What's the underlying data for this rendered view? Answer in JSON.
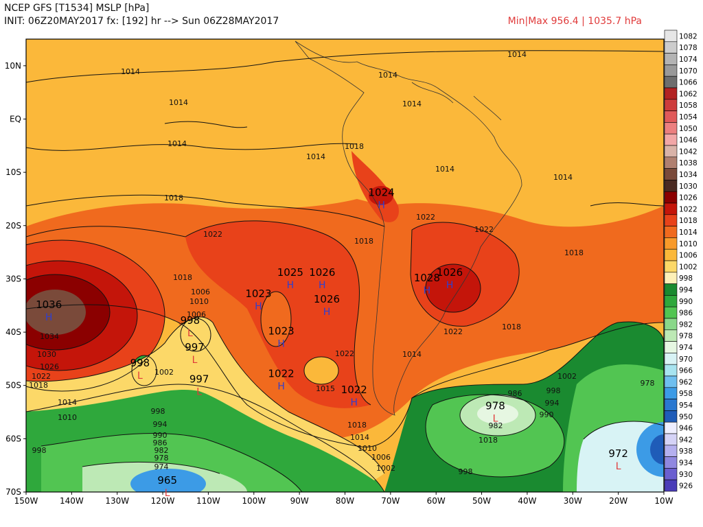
{
  "header": {
    "line1": "NCEP GFS [T1534] MSLP [hPa]",
    "line2": "INIT: 06Z20MAY2017 fx: [192] hr --> Sun 06Z28MAY2017",
    "minmax": "Min|Max 956.4 | 1035.7 hPa"
  },
  "axes": {
    "lon_ticks": [
      "150W",
      "140W",
      "130W",
      "120W",
      "110W",
      "100W",
      "90W",
      "80W",
      "70W",
      "60W",
      "50W",
      "40W",
      "30W",
      "20W",
      "10W"
    ],
    "lat_ticks": [
      "10N",
      "EQ",
      "10S",
      "20S",
      "30S",
      "40S",
      "50S",
      "60S",
      "70S"
    ]
  },
  "colorbar": {
    "levels": [
      "1082",
      "1078",
      "1074",
      "1070",
      "1066",
      "1062",
      "1058",
      "1054",
      "1050",
      "1046",
      "1042",
      "1038",
      "1034",
      "1030",
      "1026",
      "1022",
      "1018",
      "1014",
      "1010",
      "1006",
      "1002",
      "998",
      "994",
      "990",
      "986",
      "982",
      "978",
      "974",
      "970",
      "966",
      "962",
      "958",
      "954",
      "950",
      "946",
      "942",
      "938",
      "934",
      "930",
      "926"
    ],
    "colors": [
      "#e6e6e6",
      "#cccccc",
      "#b3b3b3",
      "#999999",
      "#6e6e6e",
      "#b22222",
      "#cd3c3c",
      "#e05a5a",
      "#ec8080",
      "#f2a7a7",
      "#d9b3a8",
      "#b08070",
      "#7a4a3a",
      "#4a2a22",
      "#8b0000",
      "#c4150a",
      "#e8421a",
      "#f06a1e",
      "#f89a2a",
      "#fbb83a",
      "#fcd868",
      "#fdf0b8",
      "#1a8a30",
      "#2fa83c",
      "#52c552",
      "#8ad88a",
      "#bde9b5",
      "#e6f7e2",
      "#d8f3f5",
      "#a8e4f0",
      "#6fbfef",
      "#3c9be6",
      "#2a78d0",
      "#1f5cb8",
      "#eeeeff",
      "#d5d3f7",
      "#b5b0ef",
      "#9088e0",
      "#6b5fd0",
      "#4a3cb8"
    ]
  },
  "map_data": {
    "lon_range": [
      -150,
      -10
    ],
    "lat_range": [
      -70,
      15
    ],
    "pressure_labels": [
      "1014",
      "1014",
      "1014",
      "1014",
      "1014",
      "1014",
      "1014",
      "1014",
      "1014",
      "1014",
      "1018",
      "1018",
      "1018",
      "1018",
      "1018",
      "1022",
      "1022",
      "1022",
      "1022",
      "1034",
      "1030",
      "1026",
      "1022",
      "1018",
      "1014",
      "1010",
      "1006",
      "1010",
      "1006",
      "1002",
      "998",
      "994",
      "990",
      "986",
      "982",
      "978",
      "974",
      "998",
      "1002",
      "1006",
      "1010",
      "1014",
      "1018",
      "1002",
      "998",
      "994",
      "990",
      "982",
      "986",
      "978",
      "998",
      "1022",
      "1018",
      "1018",
      "1015"
    ],
    "centers": [
      {
        "type": "H",
        "value": "1036",
        "lon": -145,
        "lat": -37
      },
      {
        "type": "H",
        "value": "1025",
        "lon": -92,
        "lat": -31
      },
      {
        "type": "H",
        "value": "1026",
        "lon": -85,
        "lat": -31
      },
      {
        "type": "H",
        "value": "1023",
        "lon": -99,
        "lat": -35
      },
      {
        "type": "H",
        "value": "1026",
        "lon": -84,
        "lat": -36
      },
      {
        "type": "H",
        "value": "1023",
        "lon": -94,
        "lat": -42
      },
      {
        "type": "H",
        "value": "1022",
        "lon": -94,
        "lat": -50
      },
      {
        "type": "H",
        "value": "1022",
        "lon": -78,
        "lat": -53
      },
      {
        "type": "H",
        "value": "1024",
        "lon": -72,
        "lat": -16
      },
      {
        "type": "H",
        "value": "1028",
        "lon": -62,
        "lat": -32
      },
      {
        "type": "H",
        "value": "1026",
        "lon": -57,
        "lat": -31
      },
      {
        "type": "L",
        "value": "997",
        "lon": -113,
        "lat": -45
      },
      {
        "type": "L",
        "value": "997",
        "lon": -112,
        "lat": -51
      },
      {
        "type": "L",
        "value": "998",
        "lon": -125,
        "lat": -48
      },
      {
        "type": "L",
        "value": "978",
        "lon": -47,
        "lat": -56
      },
      {
        "type": "L",
        "value": "972",
        "lon": -20,
        "lat": -65
      },
      {
        "type": "L",
        "value": "965",
        "lon": -119,
        "lat": -70
      },
      {
        "type": "L",
        "value": "998",
        "lon": -114,
        "lat": -40
      }
    ]
  }
}
